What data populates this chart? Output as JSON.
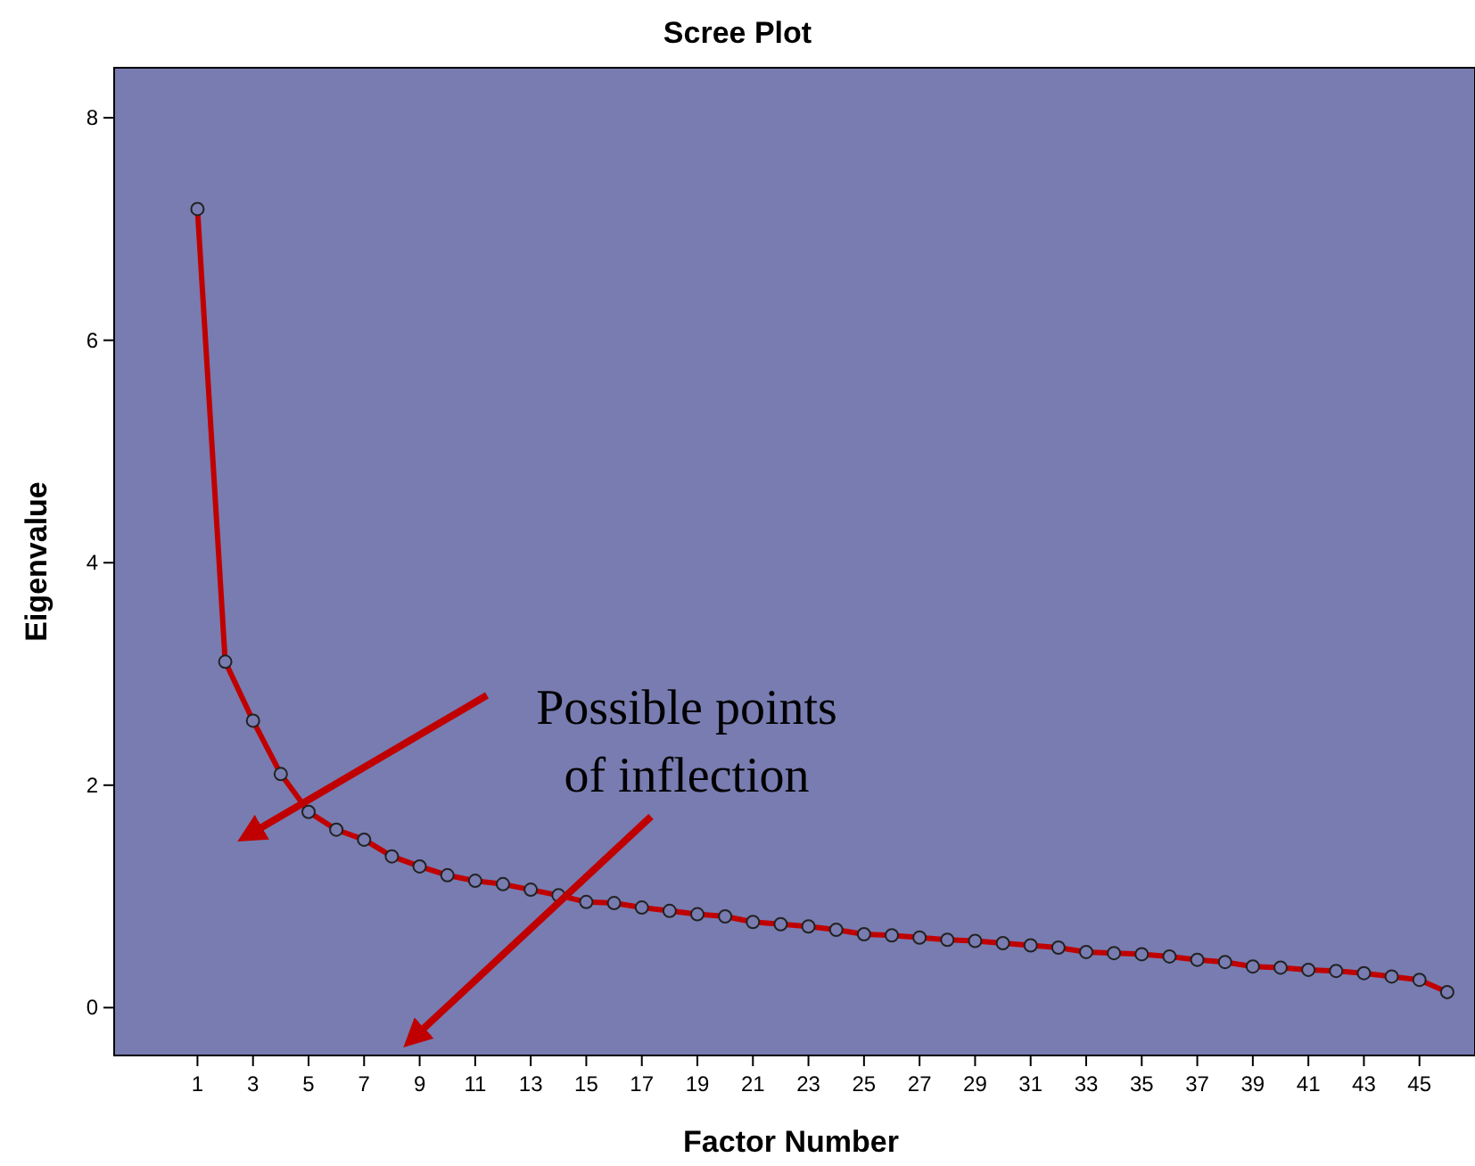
{
  "chart_data": {
    "type": "line",
    "title": "Scree Plot",
    "xlabel": "Factor Number",
    "ylabel": "Eigenvalue",
    "x": [
      1,
      2,
      3,
      4,
      5,
      6,
      7,
      8,
      9,
      10,
      11,
      12,
      13,
      14,
      15,
      16,
      17,
      18,
      19,
      20,
      21,
      22,
      23,
      24,
      25,
      26,
      27,
      28,
      29,
      30,
      31,
      32,
      33,
      34,
      35,
      36,
      37,
      38,
      39,
      40,
      41,
      42,
      43,
      44,
      45,
      46
    ],
    "series": [
      {
        "color": "#c00000",
        "values": [
          7.18,
          3.11,
          2.58,
          2.1,
          1.76,
          1.6,
          1.51,
          1.36,
          1.27,
          1.19,
          1.14,
          1.11,
          1.06,
          1.01,
          0.95,
          0.94,
          0.9,
          0.87,
          0.84,
          0.82,
          0.77,
          0.75,
          0.73,
          0.7,
          0.66,
          0.65,
          0.63,
          0.61,
          0.6,
          0.58,
          0.56,
          0.54,
          0.5,
          0.49,
          0.48,
          0.46,
          0.43,
          0.41,
          0.37,
          0.36,
          0.34,
          0.33,
          0.31,
          0.28,
          0.25,
          0.14
        ]
      }
    ],
    "xlim": [
      -2,
      47
    ],
    "xticks": [
      1,
      3,
      5,
      7,
      9,
      11,
      13,
      15,
      17,
      19,
      21,
      23,
      25,
      27,
      29,
      31,
      33,
      35,
      37,
      39,
      41,
      43,
      45
    ],
    "ylim": [
      -0.43,
      8.45
    ],
    "yticks": [
      0,
      2,
      4,
      6,
      8
    ],
    "annotations": [
      "Possible points of inflection"
    ],
    "marker": "circle",
    "line_style": "solid"
  }
}
